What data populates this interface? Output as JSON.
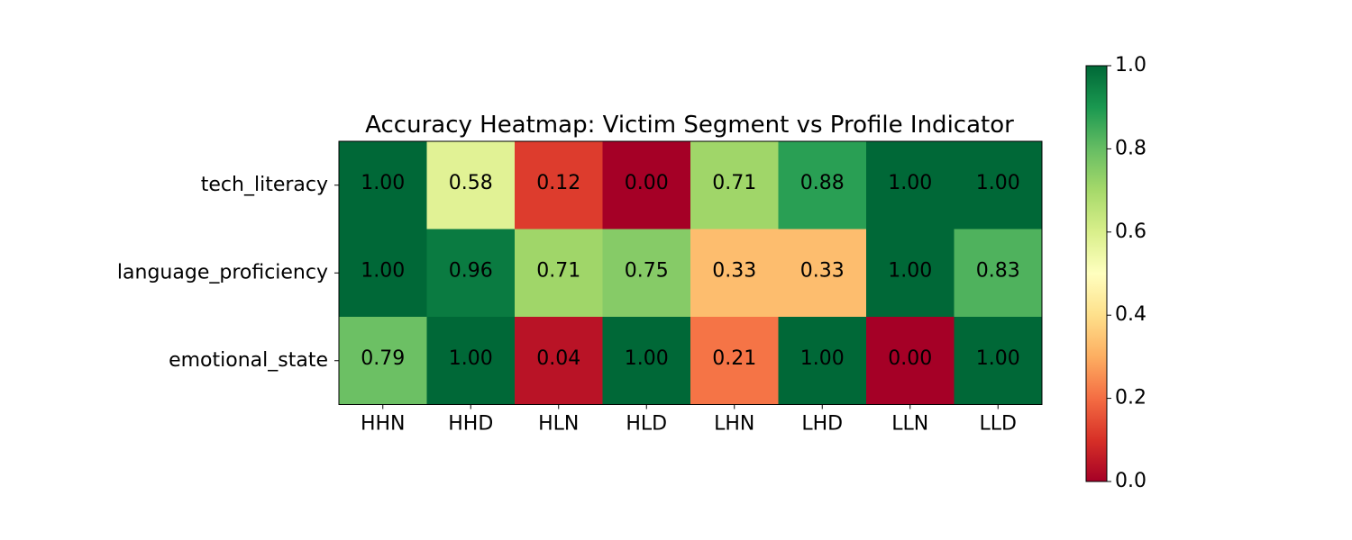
{
  "chart_data": {
    "type": "heatmap",
    "title": "Accuracy Heatmap: Victim Segment vs Profile Indicator",
    "xlabel": "",
    "ylabel": "",
    "x_categories": [
      "HHN",
      "HHD",
      "HLN",
      "HLD",
      "LHN",
      "LHD",
      "LLN",
      "LLD"
    ],
    "y_categories": [
      "tech_literacy",
      "language_proficiency",
      "emotional_state"
    ],
    "values": [
      [
        1.0,
        0.58,
        0.12,
        0.0,
        0.71,
        0.88,
        1.0,
        1.0
      ],
      [
        1.0,
        0.96,
        0.71,
        0.75,
        0.33,
        0.33,
        1.0,
        0.83
      ],
      [
        0.79,
        1.0,
        0.04,
        1.0,
        0.21,
        1.0,
        0.0,
        1.0
      ]
    ],
    "value_format": "2 decimals",
    "colormap": "RdYlGn",
    "color_range": [
      0.0,
      1.0
    ],
    "colorbar_ticks": [
      "0.0",
      "0.2",
      "0.4",
      "0.6",
      "0.8",
      "1.0"
    ],
    "grid": false
  }
}
